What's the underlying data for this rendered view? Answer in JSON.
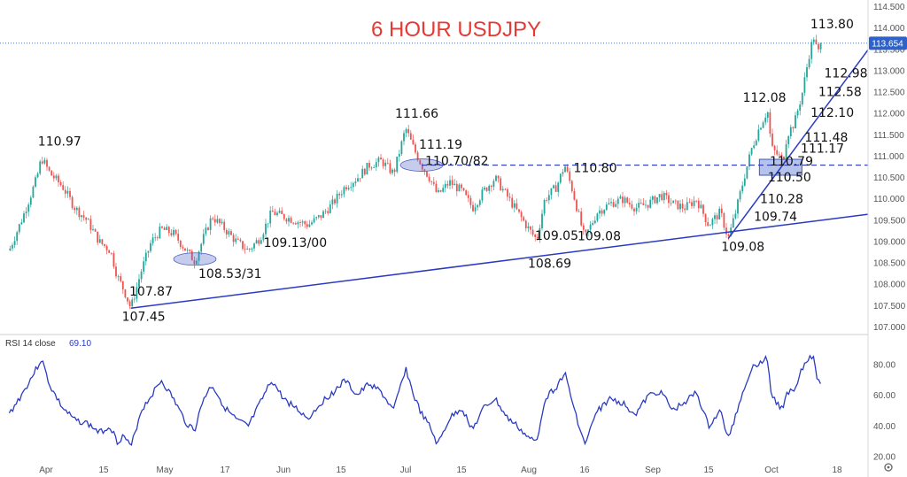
{
  "chart_data": {
    "type": "candlestick",
    "title": "6 HOUR USDJPY",
    "price_axis": {
      "ticks": [
        "114.500",
        "114.000",
        "113.500",
        "113.000",
        "112.500",
        "112.000",
        "111.500",
        "111.000",
        "110.500",
        "110.000",
        "109.500",
        "109.000",
        "108.500",
        "108.000",
        "107.500",
        "107.000"
      ],
      "ylim": [
        107.0,
        114.5
      ],
      "last_price_label": "113.654",
      "last_price": 113.654
    },
    "x_axis": {
      "tick_labels": [
        "Apr",
        "15",
        "May",
        "17",
        "Jun",
        "15",
        "Jul",
        "15",
        "Aug",
        "16",
        "Sep",
        "15",
        "Oct",
        "18"
      ]
    },
    "price_series": [
      {
        "x": "Mar 24",
        "y": 108.8
      },
      {
        "x": "Mar 27",
        "y": 109.6
      },
      {
        "x": "Mar 30",
        "y": 110.5
      },
      {
        "x": "Mar 31",
        "y": 110.97
      },
      {
        "x": "Apr 2",
        "y": 110.6
      },
      {
        "x": "Apr 5",
        "y": 110.3
      },
      {
        "x": "Apr 8",
        "y": 109.8
      },
      {
        "x": "Apr 11",
        "y": 109.5
      },
      {
        "x": "Apr 14",
        "y": 109.0
      },
      {
        "x": "Apr 17",
        "y": 108.8
      },
      {
        "x": "Apr 19",
        "y": 108.2
      },
      {
        "x": "Apr 21",
        "y": 107.87
      },
      {
        "x": "Apr 23",
        "y": 107.45
      },
      {
        "x": "Apr 26",
        "y": 108.3
      },
      {
        "x": "Apr 29",
        "y": 109.0
      },
      {
        "x": "May 2",
        "y": 109.3
      },
      {
        "x": "May 5",
        "y": 109.2
      },
      {
        "x": "May 8",
        "y": 108.8
      },
      {
        "x": "May 10",
        "y": 108.55
      },
      {
        "x": "May 12",
        "y": 109.1
      },
      {
        "x": "May 14",
        "y": 109.6
      },
      {
        "x": "May 17",
        "y": 109.3
      },
      {
        "x": "May 20",
        "y": 109.0
      },
      {
        "x": "May 23",
        "y": 108.8
      },
      {
        "x": "May 26",
        "y": 109.1
      },
      {
        "x": "May 29",
        "y": 109.7
      },
      {
        "x": "Jun 1",
        "y": 109.6
      },
      {
        "x": "Jun 4",
        "y": 109.5
      },
      {
        "x": "Jun 7",
        "y": 109.4
      },
      {
        "x": "Jun 10",
        "y": 109.6
      },
      {
        "x": "Jun 13",
        "y": 109.9
      },
      {
        "x": "Jun 16",
        "y": 110.3
      },
      {
        "x": "Jun 19",
        "y": 110.5
      },
      {
        "x": "Jun 22",
        "y": 110.8
      },
      {
        "x": "Jun 25",
        "y": 110.9
      },
      {
        "x": "Jun 28",
        "y": 110.6
      },
      {
        "x": "Jul 1",
        "y": 111.66
      },
      {
        "x": "Jul 3",
        "y": 111.19
      },
      {
        "x": "Jul 5",
        "y": 110.8
      },
      {
        "x": "Jul 7",
        "y": 110.5
      },
      {
        "x": "Jul 9",
        "y": 110.1
      },
      {
        "x": "Jul 12",
        "y": 110.4
      },
      {
        "x": "Jul 15",
        "y": 110.2
      },
      {
        "x": "Jul 18",
        "y": 109.8
      },
      {
        "x": "Jul 21",
        "y": 110.2
      },
      {
        "x": "Jul 24",
        "y": 110.5
      },
      {
        "x": "Jul 27",
        "y": 110.1
      },
      {
        "x": "Jul 30",
        "y": 109.7
      },
      {
        "x": "Aug 2",
        "y": 109.3
      },
      {
        "x": "Aug 4",
        "y": 109.05
      },
      {
        "x": "Aug 6",
        "y": 110.0
      },
      {
        "x": "Aug 9",
        "y": 110.3
      },
      {
        "x": "Aug 11",
        "y": 110.8
      },
      {
        "x": "Aug 13",
        "y": 110.2
      },
      {
        "x": "Aug 16",
        "y": 109.08
      },
      {
        "x": "Aug 19",
        "y": 109.7
      },
      {
        "x": "Aug 22",
        "y": 109.9
      },
      {
        "x": "Aug 25",
        "y": 110.0
      },
      {
        "x": "Aug 28",
        "y": 109.8
      },
      {
        "x": "Aug 31",
        "y": 109.9
      },
      {
        "x": "Sep 3",
        "y": 110.1
      },
      {
        "x": "Sep 6",
        "y": 109.9
      },
      {
        "x": "Sep 9",
        "y": 109.8
      },
      {
        "x": "Sep 12",
        "y": 110.0
      },
      {
        "x": "Sep 15",
        "y": 109.4
      },
      {
        "x": "Sep 18",
        "y": 109.7
      },
      {
        "x": "Sep 20",
        "y": 109.08
      },
      {
        "x": "Sep 22",
        "y": 109.74
      },
      {
        "x": "Sep 24",
        "y": 110.5
      },
      {
        "x": "Sep 26",
        "y": 111.2
      },
      {
        "x": "Sep 28",
        "y": 111.7
      },
      {
        "x": "Sep 30",
        "y": 112.08
      },
      {
        "x": "Oct 1",
        "y": 111.2
      },
      {
        "x": "Oct 4",
        "y": 110.9
      },
      {
        "x": "Oct 5",
        "y": 111.5
      },
      {
        "x": "Oct 7",
        "y": 111.8
      },
      {
        "x": "Oct 9",
        "y": 112.5
      },
      {
        "x": "Oct 11",
        "y": 113.5
      },
      {
        "x": "Oct 12",
        "y": 113.8
      },
      {
        "x": "Oct 13",
        "y": 113.4
      },
      {
        "x": "Oct 14",
        "y": 113.654
      }
    ],
    "annotations": [
      {
        "text": "110.97",
        "x": "Mar 31",
        "y": 110.97
      },
      {
        "text": "107.87",
        "x": "Apr 21",
        "y": 107.87
      },
      {
        "text": "107.45",
        "x": "Apr 23",
        "y": 107.45
      },
      {
        "text": "108.53/31",
        "x": "May 10",
        "y": 108.53
      },
      {
        "text": "109.13/00",
        "x": "May 26",
        "y": 109.13
      },
      {
        "text": "111.66",
        "x": "Jul 1",
        "y": 111.66
      },
      {
        "text": "111.19",
        "x": "Jul 3",
        "y": 111.19
      },
      {
        "text": "110.70/82",
        "x": "Jul 5",
        "y": 110.76
      },
      {
        "text": "110.80",
        "x": "Aug 11",
        "y": 110.8
      },
      {
        "text": "109.05",
        "x": "Aug 4",
        "y": 109.05
      },
      {
        "text": "108.69",
        "x": "Aug 4",
        "y": 108.69
      },
      {
        "text": "109.08",
        "x": "Aug 16",
        "y": 109.08
      },
      {
        "text": "109.08",
        "x": "Sep 20",
        "y": 109.08
      },
      {
        "text": "109.74",
        "x": "Sep 22",
        "y": 109.74
      },
      {
        "text": "110.28",
        "x": "Sep 24",
        "y": 110.28
      },
      {
        "text": "110.50",
        "x": "Sep 26",
        "y": 110.5
      },
      {
        "text": "110.79",
        "x": "Oct 1",
        "y": 110.79
      },
      {
        "text": "111.17",
        "x": "Oct 4",
        "y": 111.17
      },
      {
        "text": "111.48",
        "x": "Oct 5",
        "y": 111.48
      },
      {
        "text": "112.08",
        "x": "Sep 30",
        "y": 112.08
      },
      {
        "text": "112.10",
        "x": "Oct 7",
        "y": 112.1
      },
      {
        "text": "112.58",
        "x": "Oct 9",
        "y": 112.58
      },
      {
        "text": "112.98",
        "x": "Oct 11",
        "y": 112.98
      },
      {
        "text": "113.80",
        "x": "Oct 12",
        "y": 113.8
      }
    ],
    "rsi": {
      "label": "RSI 14 close",
      "value": "69.10",
      "ticks": [
        "80.00",
        "60.00",
        "40.00",
        "20.00"
      ],
      "ylim": [
        18,
        90
      ],
      "series": [
        {
          "x": "Mar 24",
          "y": 48
        },
        {
          "x": "Mar 27",
          "y": 62
        },
        {
          "x": "Mar 30",
          "y": 78
        },
        {
          "x": "Mar 31",
          "y": 84
        },
        {
          "x": "Apr 2",
          "y": 66
        },
        {
          "x": "Apr 5",
          "y": 52
        },
        {
          "x": "Apr 8",
          "y": 44
        },
        {
          "x": "Apr 11",
          "y": 42
        },
        {
          "x": "Apr 14",
          "y": 36
        },
        {
          "x": "Apr 17",
          "y": 40
        },
        {
          "x": "Apr 19",
          "y": 30
        },
        {
          "x": "Apr 21",
          "y": 34
        },
        {
          "x": "Apr 23",
          "y": 26
        },
        {
          "x": "Apr 26",
          "y": 50
        },
        {
          "x": "May 2",
          "y": 70
        },
        {
          "x": "May 5",
          "y": 58
        },
        {
          "x": "May 8",
          "y": 42
        },
        {
          "x": "May 10",
          "y": 38
        },
        {
          "x": "May 12",
          "y": 58
        },
        {
          "x": "May 14",
          "y": 67
        },
        {
          "x": "May 17",
          "y": 52
        },
        {
          "x": "May 20",
          "y": 44
        },
        {
          "x": "May 23",
          "y": 40
        },
        {
          "x": "May 26",
          "y": 55
        },
        {
          "x": "May 29",
          "y": 70
        },
        {
          "x": "Jun 1",
          "y": 58
        },
        {
          "x": "Jun 4",
          "y": 52
        },
        {
          "x": "Jun 7",
          "y": 45
        },
        {
          "x": "Jun 10",
          "y": 55
        },
        {
          "x": "Jun 13",
          "y": 62
        },
        {
          "x": "Jun 16",
          "y": 70
        },
        {
          "x": "Jun 19",
          "y": 60
        },
        {
          "x": "Jun 22",
          "y": 68
        },
        {
          "x": "Jun 25",
          "y": 62
        },
        {
          "x": "Jun 28",
          "y": 50
        },
        {
          "x": "Jul 1",
          "y": 78
        },
        {
          "x": "Jul 3",
          "y": 60
        },
        {
          "x": "Jul 5",
          "y": 48
        },
        {
          "x": "Jul 7",
          "y": 40
        },
        {
          "x": "Jul 9",
          "y": 28
        },
        {
          "x": "Jul 12",
          "y": 45
        },
        {
          "x": "Jul 15",
          "y": 52
        },
        {
          "x": "Jul 18",
          "y": 38
        },
        {
          "x": "Jul 21",
          "y": 52
        },
        {
          "x": "Jul 24",
          "y": 58
        },
        {
          "x": "Jul 27",
          "y": 46
        },
        {
          "x": "Jul 30",
          "y": 40
        },
        {
          "x": "Aug 2",
          "y": 32
        },
        {
          "x": "Aug 4",
          "y": 30
        },
        {
          "x": "Aug 6",
          "y": 58
        },
        {
          "x": "Aug 9",
          "y": 66
        },
        {
          "x": "Aug 11",
          "y": 75
        },
        {
          "x": "Aug 13",
          "y": 55
        },
        {
          "x": "Aug 16",
          "y": 28
        },
        {
          "x": "Aug 19",
          "y": 50
        },
        {
          "x": "Aug 22",
          "y": 58
        },
        {
          "x": "Aug 25",
          "y": 55
        },
        {
          "x": "Aug 28",
          "y": 48
        },
        {
          "x": "Aug 31",
          "y": 60
        },
        {
          "x": "Sep 3",
          "y": 63
        },
        {
          "x": "Sep 6",
          "y": 50
        },
        {
          "x": "Sep 9",
          "y": 56
        },
        {
          "x": "Sep 12",
          "y": 62
        },
        {
          "x": "Sep 15",
          "y": 40
        },
        {
          "x": "Sep 18",
          "y": 50
        },
        {
          "x": "Sep 20",
          "y": 32
        },
        {
          "x": "Sep 22",
          "y": 48
        },
        {
          "x": "Sep 24",
          "y": 65
        },
        {
          "x": "Sep 26",
          "y": 78
        },
        {
          "x": "Sep 28",
          "y": 82
        },
        {
          "x": "Sep 30",
          "y": 84
        },
        {
          "x": "Oct 1",
          "y": 60
        },
        {
          "x": "Oct 4",
          "y": 50
        },
        {
          "x": "Oct 5",
          "y": 62
        },
        {
          "x": "Oct 7",
          "y": 65
        },
        {
          "x": "Oct 9",
          "y": 78
        },
        {
          "x": "Oct 11",
          "y": 86
        },
        {
          "x": "Oct 12",
          "y": 84
        },
        {
          "x": "Oct 13",
          "y": 70
        },
        {
          "x": "Oct 14",
          "y": 69.1
        }
      ]
    },
    "trendlines": [
      {
        "from": {
          "x": "Apr 23",
          "y": 107.45
        },
        "to": {
          "x": "Oct 18",
          "y": 109.65
        },
        "style": "solid"
      },
      {
        "from": {
          "x": "Sep 20",
          "y": 109.08
        },
        "to": {
          "x": "Oct 18",
          "y": 113.5
        },
        "style": "solid"
      },
      {
        "from": {
          "x": "Jul 5",
          "y": 110.8
        },
        "to": {
          "x": "Oct 18",
          "y": 110.8
        },
        "style": "dashed"
      }
    ],
    "highlight_zones": [
      {
        "x": "May 10",
        "y": 108.6,
        "shape": "ellipse"
      },
      {
        "x": "Jul 5",
        "y": 110.8,
        "shape": "ellipse"
      },
      {
        "x": "Oct 2",
        "y": 110.75,
        "shape": "rect"
      }
    ],
    "colors": {
      "up": "#26a69a",
      "down": "#ef5350",
      "line": "#2b3bc1",
      "title": "#e53935",
      "rsi": "#2b3bc1"
    }
  }
}
